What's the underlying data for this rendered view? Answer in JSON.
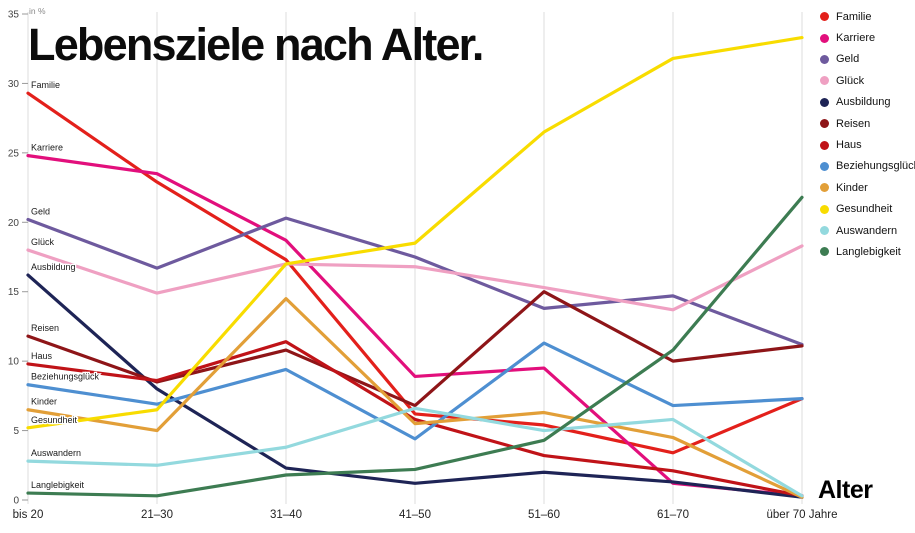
{
  "title": "Lebensziele nach Alter.",
  "y_axis": {
    "unit_label": "in %",
    "ticks": [
      0,
      5,
      10,
      15,
      20,
      25,
      30,
      35
    ],
    "max": 35
  },
  "x_axis": {
    "title": "Alter"
  },
  "chart_data": {
    "type": "line",
    "title": "Lebensziele nach Alter.",
    "xlabel": "Alter",
    "ylabel": "in %",
    "ylim": [
      0,
      35
    ],
    "grid": "vertical",
    "legend_position": "top-right",
    "categories": [
      "bis 20",
      "21–30",
      "31–40",
      "41–50",
      "51–60",
      "61–70",
      "über 70 Jahre"
    ],
    "series": [
      {
        "name": "Familie",
        "color": "#e3201b",
        "values": [
          29.3,
          22.9,
          17.3,
          6.2,
          5.4,
          3.4,
          7.3
        ]
      },
      {
        "name": "Karriere",
        "color": "#e20f7c",
        "values": [
          24.8,
          23.5,
          18.7,
          8.9,
          9.5,
          1.2,
          0.3
        ]
      },
      {
        "name": "Geld",
        "color": "#6e5a9e",
        "values": [
          20.2,
          16.7,
          20.3,
          17.5,
          13.8,
          14.7,
          11.2
        ]
      },
      {
        "name": "Glück",
        "color": "#efa0c2",
        "values": [
          18.0,
          14.9,
          17.0,
          16.8,
          15.3,
          13.7,
          18.3
        ]
      },
      {
        "name": "Ausbildung",
        "color": "#1e2456",
        "values": [
          16.2,
          8.0,
          2.3,
          1.2,
          2.0,
          1.3,
          0.2
        ]
      },
      {
        "name": "Reisen",
        "color": "#8e1518",
        "values": [
          11.8,
          8.5,
          10.8,
          6.8,
          15.0,
          10.0,
          11.1
        ]
      },
      {
        "name": "Haus",
        "color": "#c01318",
        "values": [
          9.8,
          8.6,
          11.4,
          5.8,
          3.2,
          2.1,
          0.3
        ]
      },
      {
        "name": "Beziehungsglück",
        "color": "#4e8fd1",
        "values": [
          8.3,
          6.9,
          9.4,
          4.4,
          11.3,
          6.8,
          7.3
        ]
      },
      {
        "name": "Kinder",
        "color": "#e29f38",
        "values": [
          6.5,
          5.0,
          14.5,
          5.5,
          6.3,
          4.5,
          0.2
        ]
      },
      {
        "name": "Gesundheit",
        "color": "#f8dc00",
        "values": [
          5.2,
          6.5,
          17.0,
          18.5,
          26.5,
          31.8,
          33.3
        ]
      },
      {
        "name": "Auswandern",
        "color": "#93d9de",
        "values": [
          2.8,
          2.5,
          3.8,
          6.6,
          5.0,
          5.8,
          0.3
        ]
      },
      {
        "name": "Langlebigkeit",
        "color": "#3d7c52",
        "values": [
          0.5,
          0.3,
          1.8,
          2.2,
          4.3,
          10.8,
          21.8
        ]
      }
    ]
  }
}
